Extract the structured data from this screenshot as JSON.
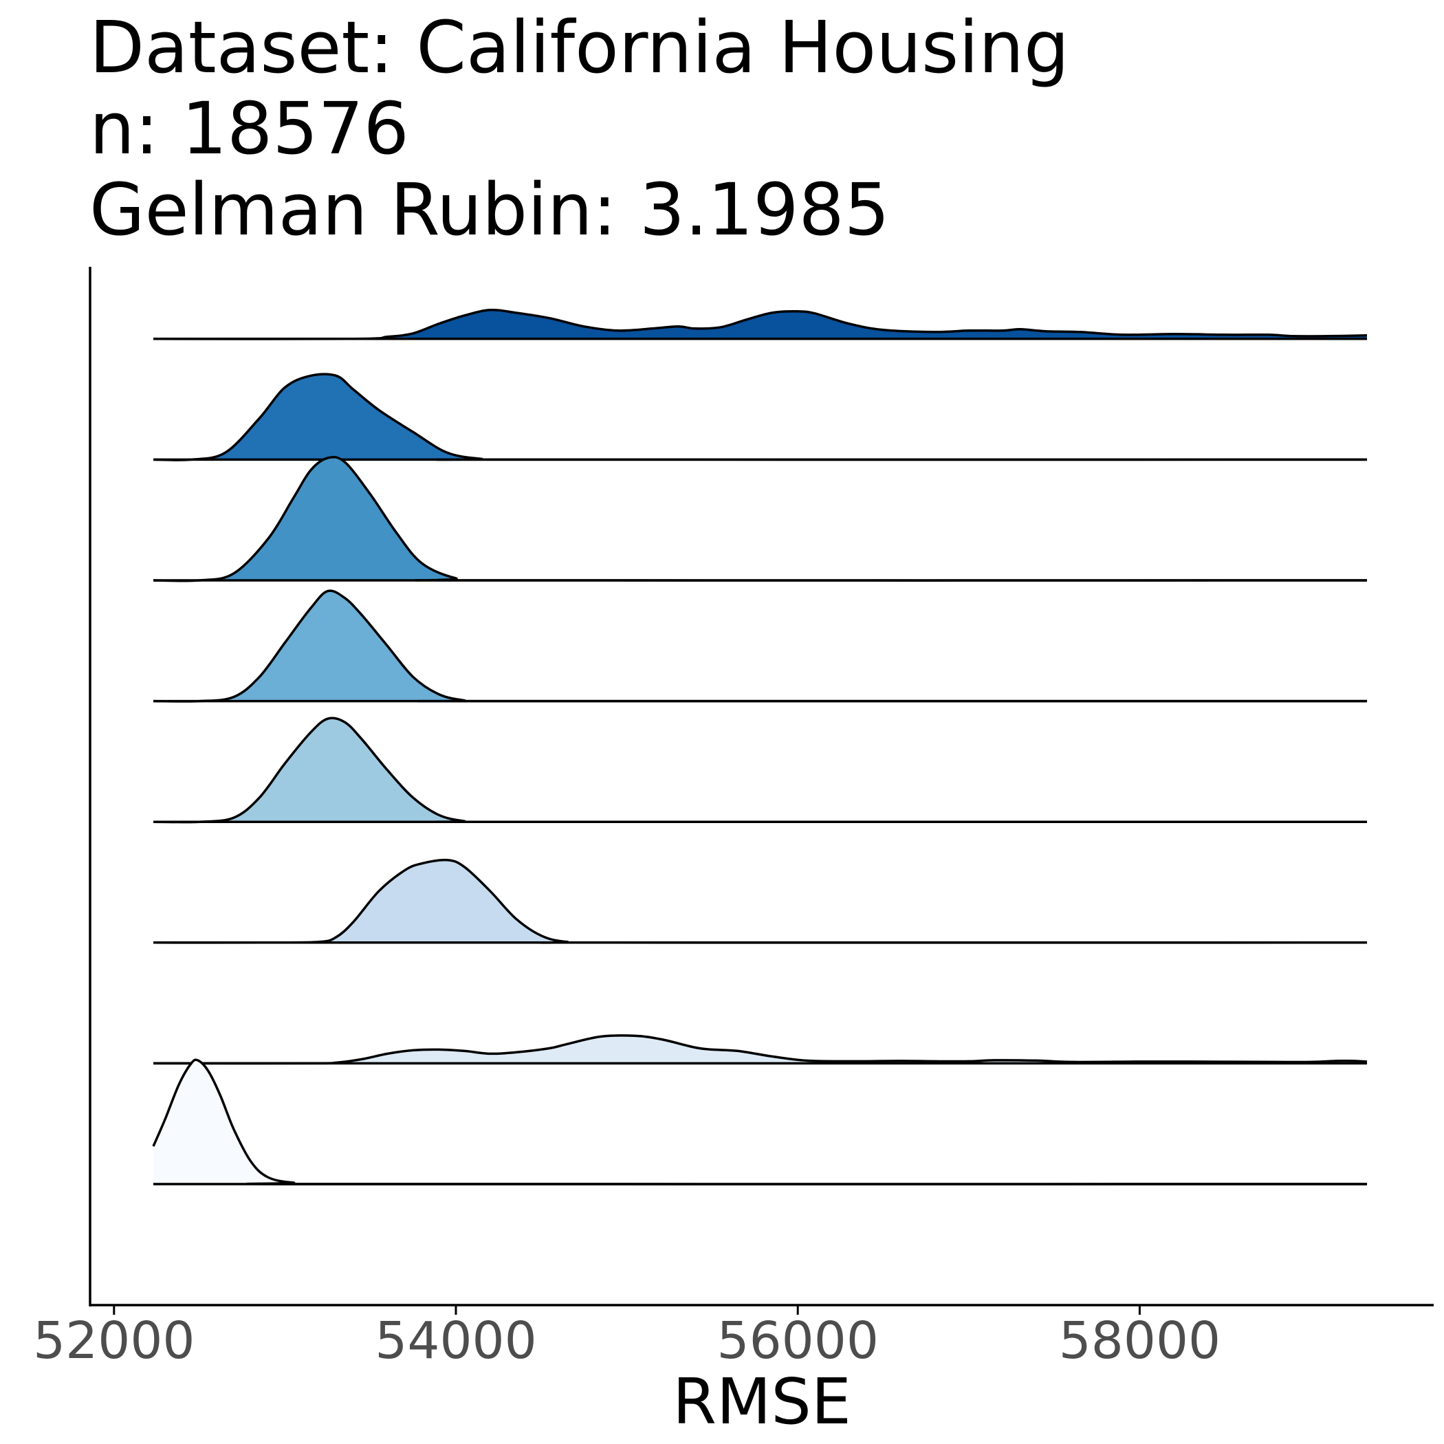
{
  "title_lines": [
    "Dataset: California Housing",
    "n: 18576",
    "Gelman Rubin: 3.1985"
  ],
  "chart_data": {
    "type": "ridgeline",
    "xlabel": "RMSE",
    "ylabel": "",
    "xlim": [
      51860,
      59720
    ],
    "xticks": [
      52000,
      54000,
      56000,
      58000
    ],
    "x_range": [
      52230,
      59330
    ],
    "colors": [
      "#f7fbff",
      "#deebf7",
      "#c6dbef",
      "#9ecae1",
      "#6baed6",
      "#4292c6",
      "#2171b5",
      "#08519c"
    ],
    "series": [
      {
        "points": [
          [
            52230,
            0.55
          ],
          [
            52300,
            0.95
          ],
          [
            52380,
            1.45
          ],
          [
            52450,
            1.75
          ],
          [
            52490,
            1.8
          ],
          [
            52550,
            1.65
          ],
          [
            52620,
            1.3
          ],
          [
            52700,
            0.8
          ],
          [
            52800,
            0.33
          ],
          [
            52900,
            0.1
          ],
          [
            53050,
            0.02
          ],
          [
            53300,
            0.0
          ],
          [
            59330,
            0.0
          ]
        ]
      },
      {
        "points": [
          [
            52230,
            0.0
          ],
          [
            53150,
            0.0
          ],
          [
            53300,
            0.01
          ],
          [
            53450,
            0.06
          ],
          [
            53600,
            0.14
          ],
          [
            53750,
            0.19
          ],
          [
            53900,
            0.2
          ],
          [
            54050,
            0.18
          ],
          [
            54200,
            0.14
          ],
          [
            54350,
            0.16
          ],
          [
            54550,
            0.22
          ],
          [
            54650,
            0.28
          ],
          [
            54850,
            0.39
          ],
          [
            55050,
            0.4
          ],
          [
            55200,
            0.35
          ],
          [
            55400,
            0.23
          ],
          [
            55500,
            0.2
          ],
          [
            55650,
            0.18
          ],
          [
            55850,
            0.1
          ],
          [
            56050,
            0.04
          ],
          [
            56300,
            0.03
          ],
          [
            56600,
            0.035
          ],
          [
            56800,
            0.03
          ],
          [
            57000,
            0.03
          ],
          [
            57150,
            0.045
          ],
          [
            57400,
            0.04
          ],
          [
            57600,
            0.02
          ],
          [
            58000,
            0.025
          ],
          [
            58300,
            0.025
          ],
          [
            58800,
            0.02
          ],
          [
            59000,
            0.02
          ],
          [
            59150,
            0.035
          ],
          [
            59250,
            0.035
          ],
          [
            59330,
            0.025
          ]
        ]
      },
      {
        "points": [
          [
            52230,
            0.0
          ],
          [
            52900,
            0.0
          ],
          [
            53200,
            0.01
          ],
          [
            53300,
            0.08
          ],
          [
            53400,
            0.3
          ],
          [
            53550,
            0.75
          ],
          [
            53700,
            1.05
          ],
          [
            53800,
            1.15
          ],
          [
            53950,
            1.2
          ],
          [
            54050,
            1.1
          ],
          [
            54200,
            0.75
          ],
          [
            54350,
            0.35
          ],
          [
            54500,
            0.1
          ],
          [
            54650,
            0.01
          ],
          [
            54900,
            0.0
          ],
          [
            59330,
            0.0
          ]
        ]
      },
      {
        "points": [
          [
            52230,
            0.0
          ],
          [
            52500,
            0.0
          ],
          [
            52700,
            0.06
          ],
          [
            52850,
            0.35
          ],
          [
            53000,
            0.85
          ],
          [
            53150,
            1.3
          ],
          [
            53250,
            1.5
          ],
          [
            53350,
            1.45
          ],
          [
            53450,
            1.2
          ],
          [
            53600,
            0.75
          ],
          [
            53750,
            0.35
          ],
          [
            53900,
            0.1
          ],
          [
            54050,
            0.01
          ],
          [
            54200,
            0.0
          ],
          [
            59330,
            0.0
          ]
        ]
      },
      {
        "points": [
          [
            52230,
            0.0
          ],
          [
            52500,
            0.0
          ],
          [
            52700,
            0.06
          ],
          [
            52850,
            0.35
          ],
          [
            53000,
            0.85
          ],
          [
            53150,
            1.35
          ],
          [
            53250,
            1.6
          ],
          [
            53350,
            1.5
          ],
          [
            53450,
            1.25
          ],
          [
            53600,
            0.8
          ],
          [
            53750,
            0.35
          ],
          [
            53900,
            0.1
          ],
          [
            54050,
            0.01
          ],
          [
            54200,
            0.0
          ],
          [
            59330,
            0.0
          ]
        ]
      },
      {
        "points": [
          [
            52230,
            0.0
          ],
          [
            52500,
            0.0
          ],
          [
            52700,
            0.1
          ],
          [
            52900,
            0.6
          ],
          [
            53050,
            1.2
          ],
          [
            53150,
            1.6
          ],
          [
            53250,
            1.78
          ],
          [
            53350,
            1.72
          ],
          [
            53500,
            1.25
          ],
          [
            53650,
            0.7
          ],
          [
            53800,
            0.25
          ],
          [
            54000,
            0.03
          ],
          [
            54200,
            0.0
          ],
          [
            59330,
            0.0
          ]
        ]
      },
      {
        "points": [
          [
            52230,
            0.0
          ],
          [
            52450,
            0.0
          ],
          [
            52650,
            0.1
          ],
          [
            52850,
            0.6
          ],
          [
            53000,
            1.05
          ],
          [
            53150,
            1.22
          ],
          [
            53300,
            1.22
          ],
          [
            53400,
            1.02
          ],
          [
            53550,
            0.72
          ],
          [
            53750,
            0.4
          ],
          [
            53950,
            0.1
          ],
          [
            54150,
            0.01
          ],
          [
            54300,
            0.0
          ],
          [
            59330,
            0.0
          ]
        ]
      },
      {
        "points": [
          [
            52230,
            0.0
          ],
          [
            53400,
            0.0
          ],
          [
            53600,
            0.03
          ],
          [
            53750,
            0.08
          ],
          [
            53900,
            0.22
          ],
          [
            54050,
            0.34
          ],
          [
            54200,
            0.42
          ],
          [
            54350,
            0.38
          ],
          [
            54550,
            0.3
          ],
          [
            54750,
            0.18
          ],
          [
            54950,
            0.12
          ],
          [
            55150,
            0.15
          ],
          [
            55300,
            0.18
          ],
          [
            55400,
            0.15
          ],
          [
            55550,
            0.17
          ],
          [
            55700,
            0.28
          ],
          [
            55850,
            0.38
          ],
          [
            56000,
            0.4
          ],
          [
            56100,
            0.37
          ],
          [
            56300,
            0.22
          ],
          [
            56500,
            0.13
          ],
          [
            56800,
            0.1
          ],
          [
            57000,
            0.12
          ],
          [
            57200,
            0.12
          ],
          [
            57300,
            0.14
          ],
          [
            57450,
            0.11
          ],
          [
            57650,
            0.1
          ],
          [
            57900,
            0.06
          ],
          [
            58200,
            0.07
          ],
          [
            58500,
            0.06
          ],
          [
            58750,
            0.06
          ],
          [
            58900,
            0.04
          ],
          [
            59100,
            0.04
          ],
          [
            59330,
            0.05
          ]
        ]
      }
    ]
  }
}
